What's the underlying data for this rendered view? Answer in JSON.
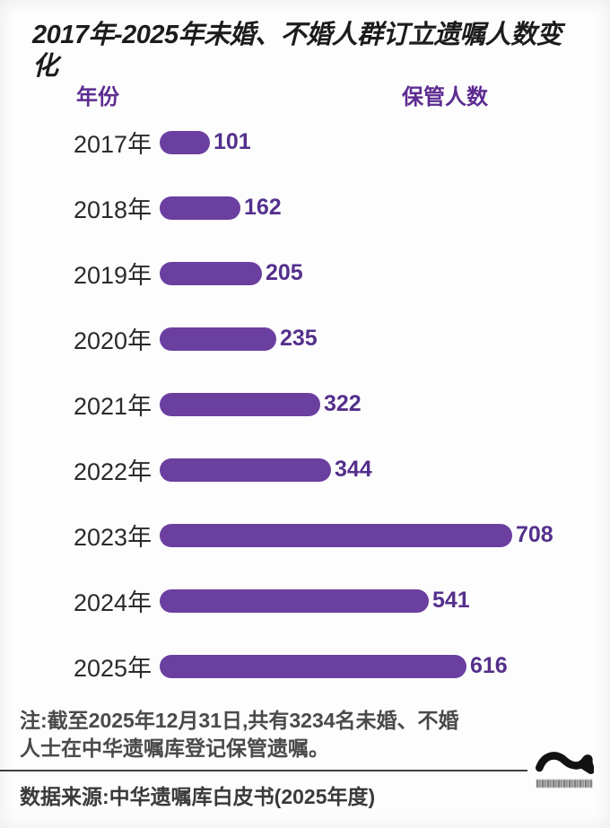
{
  "title": "2017年-2025年未婚、不婚人群订立遗嘱人数变化",
  "column_headers": {
    "year": "年份",
    "count": "保管人数"
  },
  "chart_data": {
    "type": "bar",
    "orientation": "horizontal",
    "title": "2017年-2025年未婚、不婚人群订立遗嘱人数变化",
    "xlabel": "保管人数",
    "ylabel": "年份",
    "categories": [
      "2017年",
      "2018年",
      "2019年",
      "2020年",
      "2021年",
      "2022年",
      "2023年",
      "2024年",
      "2025年"
    ],
    "values": [
      101,
      162,
      205,
      235,
      322,
      344,
      708,
      541,
      616
    ],
    "xlim": [
      0,
      708
    ],
    "data_labels": true,
    "grid": false,
    "legend": false,
    "bar_color": "#6b3fa0",
    "value_label_color": "#54308c"
  },
  "note": {
    "line1": "注:截至2025年12月31日,共有3234名未婚、不婚",
    "line2": "人士在中华遗嘱库登记保管遗嘱。"
  },
  "source": "数据来源:中华遗嘱库白皮书(2025年度)",
  "logo": {
    "icon": "wave-logo-icon"
  },
  "colors": {
    "accent_purple": "#5d2c91",
    "bar_purple": "#6b3fa0",
    "title_color": "#1c1c1c"
  }
}
